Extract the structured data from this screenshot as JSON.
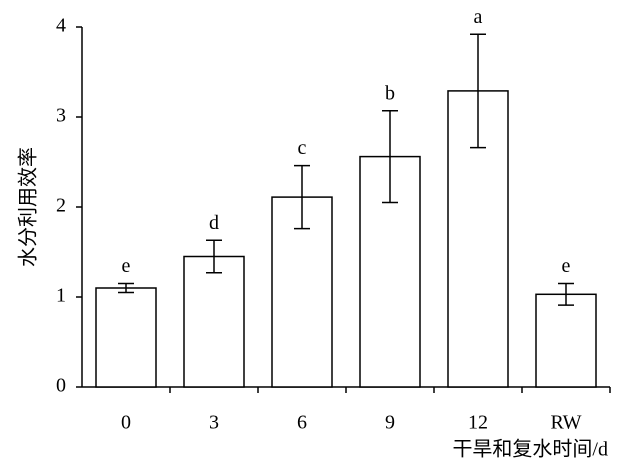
{
  "chart_data": {
    "type": "bar",
    "categories": [
      "0",
      "3",
      "6",
      "9",
      "12",
      "RW"
    ],
    "values": [
      1.1,
      1.45,
      2.11,
      2.56,
      3.29,
      1.03
    ],
    "errors": [
      0.05,
      0.18,
      0.35,
      0.51,
      0.63,
      0.12
    ],
    "letters": [
      "e",
      "d",
      "c",
      "b",
      "a",
      "e"
    ],
    "color": "#ffffff",
    "ylabel": "水分利用效率",
    "xlabel": "干旱和复水时间/d",
    "ylim": [
      0,
      4
    ],
    "yticks": [
      0,
      1,
      2,
      3,
      4
    ]
  }
}
